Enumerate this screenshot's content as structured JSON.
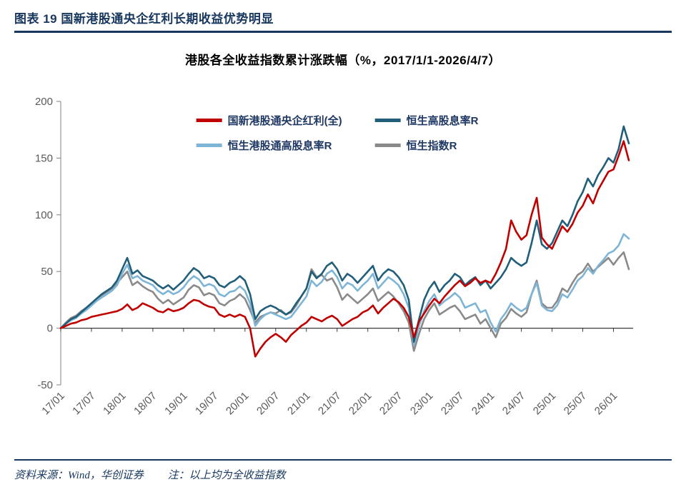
{
  "header": {
    "title": "图表 19  国新港股通央企红利长期收益优势明显"
  },
  "footer": {
    "source": "资料来源：Wind，华创证券",
    "note": "注：以上均为全收益指数"
  },
  "colors": {
    "accent_navy": "#17375E",
    "axis_text": "#595959"
  },
  "chart_data": {
    "type": "line",
    "title": "港股各全收益指数累计涨跌幅（%，2017/1/1-2026/4/7）",
    "ylabel": "",
    "xlabel": "",
    "ylim": [
      -50,
      200
    ],
    "y_ticks": [
      -50,
      0,
      50,
      100,
      150,
      200
    ],
    "grid": false,
    "legend_position": "top",
    "x_tick_labels": [
      "17/01",
      "17/07",
      "18/01",
      "18/07",
      "19/01",
      "19/07",
      "20/01",
      "20/07",
      "21/01",
      "21/07",
      "22/01",
      "22/07",
      "23/01",
      "23/07",
      "24/01",
      "24/07",
      "25/01",
      "25/07",
      "26/01"
    ],
    "x_tick_indices": [
      0,
      6,
      12,
      18,
      24,
      30,
      36,
      42,
      48,
      54,
      60,
      66,
      72,
      78,
      84,
      90,
      96,
      102,
      108
    ],
    "x_unit": "monthly points from 2017/01 to 2026/04",
    "series": [
      {
        "name": "国新港股通央企红利(全)",
        "color": "#C00000",
        "values": [
          0,
          2,
          4,
          5,
          7,
          8,
          10,
          11,
          12,
          13,
          14,
          15,
          17,
          21,
          16,
          18,
          22,
          20,
          18,
          15,
          14,
          17,
          15,
          16,
          18,
          22,
          25,
          24,
          21,
          19,
          18,
          12,
          10,
          12,
          10,
          12,
          10,
          0,
          -25,
          -18,
          -12,
          -8,
          -5,
          -8,
          -12,
          -6,
          -2,
          2,
          5,
          10,
          8,
          6,
          9,
          11,
          8,
          2,
          5,
          8,
          10,
          14,
          16,
          20,
          13,
          18,
          22,
          26,
          23,
          18,
          10,
          -8,
          6,
          13,
          20,
          26,
          22,
          28,
          33,
          38,
          42,
          37,
          40,
          44,
          40,
          42,
          40,
          48,
          58,
          70,
          95,
          85,
          78,
          82,
          100,
          115,
          80,
          74,
          70,
          80,
          90,
          85,
          92,
          102,
          108,
          118,
          110,
          122,
          130,
          138,
          140,
          152,
          165,
          148
        ]
      },
      {
        "name": "恒生高股息率R",
        "color": "#215E79",
        "values": [
          0,
          4,
          8,
          10,
          14,
          18,
          22,
          26,
          30,
          33,
          36,
          42,
          52,
          62,
          48,
          51,
          46,
          44,
          42,
          38,
          35,
          38,
          34,
          38,
          42,
          48,
          53,
          50,
          44,
          46,
          44,
          38,
          36,
          40,
          42,
          46,
          42,
          30,
          8,
          15,
          18,
          20,
          18,
          15,
          12,
          15,
          22,
          28,
          35,
          50,
          44,
          48,
          55,
          58,
          52,
          42,
          48,
          45,
          40,
          45,
          50,
          55,
          42,
          48,
          52,
          50,
          45,
          38,
          25,
          -12,
          8,
          25,
          35,
          41,
          32,
          38,
          42,
          48,
          45,
          38,
          42,
          45,
          38,
          42,
          35,
          40,
          45,
          52,
          62,
          58,
          55,
          58,
          75,
          95,
          74,
          70,
          75,
          85,
          95,
          90,
          100,
          112,
          120,
          132,
          125,
          135,
          142,
          150,
          146,
          158,
          178,
          163
        ]
      },
      {
        "name": "恒生港股通高股息率R",
        "color": "#7EB5D6",
        "values": [
          0,
          4,
          7,
          9,
          13,
          16,
          20,
          24,
          27,
          30,
          33,
          38,
          48,
          56,
          44,
          46,
          42,
          40,
          38,
          33,
          30,
          33,
          30,
          32,
          36,
          42,
          46,
          43,
          37,
          39,
          37,
          30,
          28,
          32,
          33,
          37,
          33,
          22,
          2,
          8,
          12,
          14,
          12,
          10,
          8,
          10,
          16,
          22,
          28,
          42,
          37,
          41,
          48,
          51,
          45,
          35,
          40,
          38,
          33,
          38,
          42,
          48,
          35,
          40,
          45,
          42,
          38,
          30,
          18,
          -15,
          2,
          15,
          24,
          30,
          20,
          24,
          27,
          31,
          27,
          18,
          20,
          22,
          14,
          16,
          5,
          -3,
          8,
          14,
          22,
          18,
          15,
          18,
          30,
          40,
          20,
          16,
          15,
          20,
          30,
          27,
          34,
          42,
          46,
          53,
          48,
          55,
          60,
          66,
          68,
          73,
          83,
          79
        ]
      },
      {
        "name": "恒生指数R",
        "color": "#8A8A8A",
        "values": [
          0,
          5,
          9,
          11,
          15,
          18,
          22,
          26,
          29,
          32,
          35,
          40,
          45,
          50,
          38,
          41,
          37,
          34,
          32,
          26,
          22,
          25,
          21,
          24,
          27,
          34,
          38,
          36,
          29,
          31,
          29,
          22,
          20,
          24,
          26,
          30,
          26,
          16,
          5,
          10,
          12,
          14,
          13,
          16,
          12,
          14,
          20,
          28,
          35,
          52,
          45,
          47,
          42,
          44,
          36,
          25,
          30,
          26,
          22,
          26,
          30,
          35,
          24,
          28,
          32,
          28,
          22,
          15,
          5,
          -20,
          -5,
          8,
          16,
          22,
          12,
          15,
          18,
          20,
          15,
          8,
          10,
          12,
          4,
          8,
          0,
          -8,
          4,
          9,
          17,
          13,
          10,
          14,
          30,
          42,
          22,
          18,
          18,
          24,
          35,
          32,
          40,
          47,
          50,
          57,
          50,
          54,
          58,
          62,
          56,
          62,
          67,
          52
        ]
      }
    ]
  }
}
